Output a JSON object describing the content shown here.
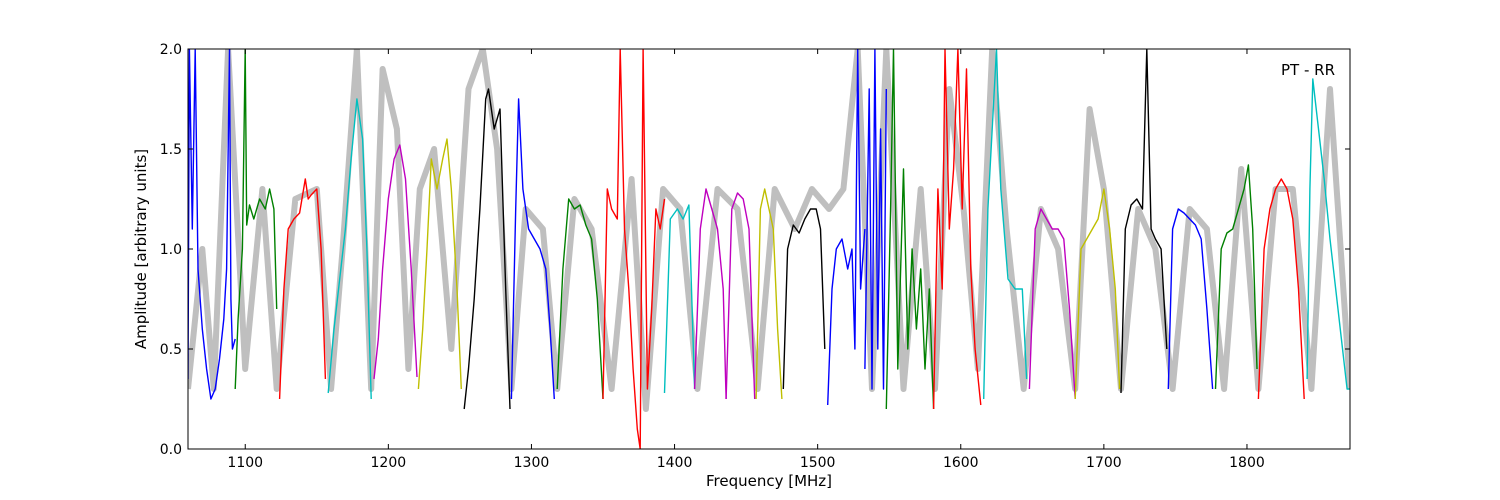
{
  "chart_data": {
    "type": "line",
    "title": "",
    "annotation": "PT - RR",
    "xlabel": "Frequency [MHz]",
    "ylabel": "Amplitude [arbitrary units]",
    "xlim": [
      1060,
      1872
    ],
    "ylim": [
      0,
      2.0
    ],
    "xticks": [
      1100,
      1200,
      1300,
      1400,
      1500,
      1600,
      1700,
      1800
    ],
    "yticks": [
      0.0,
      0.5,
      1.0,
      1.5,
      2.0
    ],
    "xtick_labels": [
      "1100",
      "1200",
      "1300",
      "1400",
      "1500",
      "1600",
      "1700",
      "1800"
    ],
    "ytick_labels": [
      "0.0",
      "0.5",
      "1.0",
      "1.5",
      "2.0"
    ],
    "grid": false,
    "background_series": {
      "color": "#bfbfbf",
      "x": [
        1060,
        1070,
        1078,
        1088,
        1100,
        1112,
        1122,
        1135,
        1150,
        1160,
        1168,
        1178,
        1188,
        1196,
        1206,
        1214,
        1222,
        1232,
        1244,
        1256,
        1266,
        1276,
        1286,
        1296,
        1308,
        1318,
        1330,
        1342,
        1356,
        1370,
        1380,
        1392,
        1404,
        1416,
        1430,
        1444,
        1458,
        1470,
        1484,
        1496,
        1508,
        1518,
        1528,
        1538,
        1548,
        1560,
        1572,
        1582,
        1592,
        1602,
        1612,
        1622,
        1632,
        1644,
        1656,
        1668,
        1680,
        1690,
        1700,
        1712,
        1724,
        1736,
        1748,
        1760,
        1772,
        1784,
        1796,
        1808,
        1820,
        1832,
        1845,
        1858,
        1872
      ],
      "values": [
        0.3,
        1.0,
        0.3,
        2.0,
        0.4,
        1.3,
        0.3,
        1.25,
        1.3,
        0.3,
        1.0,
        2.0,
        0.3,
        1.9,
        1.6,
        0.4,
        1.3,
        1.5,
        0.5,
        1.8,
        2.0,
        1.5,
        0.3,
        1.2,
        1.1,
        0.3,
        1.25,
        1.1,
        0.3,
        1.35,
        0.2,
        1.3,
        1.2,
        0.3,
        1.3,
        1.2,
        0.3,
        1.3,
        1.1,
        1.3,
        1.2,
        1.3,
        2.0,
        0.3,
        2.0,
        0.3,
        1.3,
        0.3,
        1.8,
        1.2,
        0.4,
        2.0,
        1.1,
        0.3,
        1.2,
        1.0,
        0.3,
        1.7,
        1.3,
        0.3,
        1.2,
        1.0,
        0.3,
        1.2,
        1.1,
        0.3,
        1.4,
        0.3,
        1.3,
        1.3,
        0.3,
        1.8,
        0.3
      ]
    },
    "series": [
      {
        "color": "#0000ff",
        "x": [
          1060,
          1061,
          1063,
          1065,
          1067,
          1070,
          1073,
          1076,
          1079,
          1082,
          1085,
          1087,
          1089,
          1090,
          1091,
          1093
        ],
        "values": [
          0.35,
          2.0,
          1.1,
          2.0,
          0.9,
          0.6,
          0.4,
          0.25,
          0.3,
          0.45,
          0.65,
          0.9,
          2.0,
          0.75,
          0.5,
          0.55
        ]
      },
      {
        "color": "#008000",
        "x": [
          1093,
          1095,
          1098,
          1100,
          1101,
          1103,
          1106,
          1110,
          1114,
          1117,
          1120,
          1122
        ],
        "values": [
          0.3,
          0.65,
          1.0,
          2.0,
          1.12,
          1.22,
          1.15,
          1.25,
          1.2,
          1.3,
          1.2,
          0.7
        ]
      },
      {
        "color": "#ff0000",
        "x": [
          1124,
          1127,
          1130,
          1134,
          1138,
          1142,
          1144,
          1146,
          1150,
          1153,
          1156
        ],
        "values": [
          0.25,
          0.8,
          1.1,
          1.15,
          1.18,
          1.35,
          1.25,
          1.27,
          1.3,
          1.0,
          0.35
        ]
      },
      {
        "color": "#00bfbf",
        "x": [
          1158,
          1162,
          1166,
          1170,
          1174,
          1178,
          1182,
          1185,
          1188
        ],
        "values": [
          0.28,
          0.6,
          0.85,
          1.1,
          1.45,
          1.75,
          1.55,
          1.0,
          0.25
        ]
      },
      {
        "color": "#bf00bf",
        "x": [
          1190,
          1193,
          1196,
          1200,
          1204,
          1208,
          1212,
          1216,
          1220
        ],
        "values": [
          0.35,
          0.55,
          0.9,
          1.25,
          1.45,
          1.52,
          1.35,
          0.9,
          0.36
        ]
      },
      {
        "color": "#bfbf00",
        "x": [
          1221,
          1224,
          1227,
          1230,
          1234,
          1238,
          1241,
          1244,
          1248,
          1251
        ],
        "values": [
          0.3,
          0.6,
          1.0,
          1.45,
          1.3,
          1.45,
          1.55,
          1.3,
          0.8,
          0.3
        ]
      },
      {
        "color": "#000000",
        "x": [
          1253,
          1256,
          1260,
          1264,
          1268,
          1270,
          1274,
          1278,
          1282,
          1285
        ],
        "values": [
          0.2,
          0.4,
          0.75,
          1.2,
          1.75,
          1.8,
          1.6,
          1.7,
          0.8,
          0.2
        ]
      },
      {
        "color": "#0000ff",
        "x": [
          1286,
          1289,
          1291,
          1294,
          1298,
          1302,
          1306,
          1310,
          1313,
          1316
        ],
        "values": [
          0.25,
          1.2,
          1.75,
          1.3,
          1.1,
          1.05,
          1.0,
          0.9,
          0.6,
          0.25
        ]
      },
      {
        "color": "#008000",
        "x": [
          1318,
          1322,
          1326,
          1330,
          1334,
          1338,
          1342,
          1346,
          1350
        ],
        "values": [
          0.3,
          0.9,
          1.25,
          1.2,
          1.22,
          1.12,
          1.05,
          0.75,
          0.25
        ]
      },
      {
        "color": "#ff0000",
        "x": [
          1350,
          1353,
          1356,
          1360,
          1362,
          1365,
          1368,
          1371,
          1374,
          1376,
          1378,
          1381,
          1384,
          1387,
          1390,
          1393
        ],
        "values": [
          0.25,
          1.3,
          1.2,
          1.15,
          2.0,
          1.1,
          0.8,
          0.4,
          0.1,
          0.0,
          2.0,
          0.3,
          0.7,
          1.2,
          1.1,
          1.25
        ]
      },
      {
        "color": "#00bfbf",
        "x": [
          1393,
          1397,
          1402,
          1406,
          1410,
          1414
        ],
        "values": [
          0.28,
          1.15,
          1.2,
          1.15,
          1.22,
          0.3
        ]
      },
      {
        "color": "#bf00bf",
        "x": [
          1414,
          1418,
          1422,
          1426,
          1430,
          1434,
          1436
        ],
        "values": [
          0.3,
          1.1,
          1.3,
          1.2,
          1.1,
          0.8,
          0.25
        ]
      },
      {
        "color": "#bf00bf",
        "x": [
          1436,
          1440,
          1444,
          1448,
          1452,
          1456
        ],
        "values": [
          0.25,
          1.2,
          1.28,
          1.25,
          1.1,
          0.25
        ]
      },
      {
        "color": "#bfbf00",
        "x": [
          1457,
          1460,
          1463,
          1466,
          1469,
          1472,
          1475
        ],
        "values": [
          0.25,
          1.2,
          1.3,
          1.2,
          1.1,
          0.6,
          0.25
        ]
      },
      {
        "color": "#000000",
        "x": [
          1476,
          1479,
          1483,
          1487,
          1491,
          1495,
          1499,
          1502,
          1505
        ],
        "values": [
          0.3,
          1.0,
          1.12,
          1.08,
          1.15,
          1.2,
          1.2,
          1.1,
          0.5
        ]
      },
      {
        "color": "#0000ff",
        "x": [
          1507,
          1510,
          1513,
          1517,
          1521,
          1524,
          1526,
          1528,
          1530,
          1533
        ],
        "values": [
          0.22,
          0.8,
          1.0,
          1.05,
          0.9,
          1.0,
          0.5,
          2.0,
          0.8,
          1.1
        ]
      },
      {
        "color": "#0000ff",
        "x": [
          1533,
          1536,
          1538,
          1540,
          1542,
          1544,
          1546,
          1548
        ],
        "values": [
          0.4,
          1.8,
          0.3,
          2.0,
          0.5,
          1.6,
          0.3,
          1.8
        ]
      },
      {
        "color": "#008000",
        "x": [
          1548,
          1551,
          1553,
          1556,
          1560,
          1563,
          1566,
          1569,
          1572,
          1575,
          1578,
          1581
        ],
        "values": [
          0.2,
          1.2,
          2.0,
          0.4,
          1.4,
          0.5,
          1.0,
          0.6,
          0.9,
          0.4,
          0.8,
          0.2
        ]
      },
      {
        "color": "#ff0000",
        "x": [
          1581,
          1584,
          1587,
          1589,
          1592,
          1595,
          1598,
          1601,
          1604,
          1607,
          1610,
          1614
        ],
        "values": [
          0.2,
          1.3,
          0.8,
          2.0,
          1.1,
          1.4,
          2.0,
          1.2,
          1.9,
          0.9,
          0.5,
          0.22
        ]
      },
      {
        "color": "#00bfbf",
        "x": [
          1616,
          1619,
          1622,
          1625,
          1628,
          1633,
          1638,
          1643,
          1646
        ],
        "values": [
          0.25,
          1.2,
          1.6,
          2.0,
          1.3,
          0.85,
          0.8,
          0.8,
          0.35
        ]
      },
      {
        "color": "#bf00bf",
        "x": [
          1648,
          1652,
          1656,
          1660,
          1664,
          1668,
          1672,
          1676,
          1680
        ],
        "values": [
          0.3,
          1.1,
          1.2,
          1.15,
          1.1,
          1.1,
          1.05,
          0.7,
          0.25
        ]
      },
      {
        "color": "#bfbf00",
        "x": [
          1680,
          1684,
          1688,
          1692,
          1696,
          1700,
          1704,
          1708,
          1711
        ],
        "values": [
          0.25,
          1.0,
          1.05,
          1.1,
          1.15,
          1.3,
          1.1,
          0.8,
          0.3
        ]
      },
      {
        "color": "#000000",
        "x": [
          1712,
          1715,
          1719,
          1723,
          1727,
          1730,
          1733,
          1736,
          1740,
          1744
        ],
        "values": [
          0.28,
          1.1,
          1.22,
          1.25,
          1.2,
          2.0,
          1.1,
          1.05,
          1.0,
          0.5
        ]
      },
      {
        "color": "#0000ff",
        "x": [
          1745,
          1748,
          1752,
          1756,
          1760,
          1764,
          1768,
          1772,
          1776
        ],
        "values": [
          0.3,
          1.1,
          1.2,
          1.18,
          1.15,
          1.12,
          1.05,
          0.7,
          0.3
        ]
      },
      {
        "color": "#008000",
        "x": [
          1778,
          1782,
          1786,
          1790,
          1794,
          1798,
          1801,
          1804,
          1807
        ],
        "values": [
          0.3,
          1.0,
          1.08,
          1.1,
          1.2,
          1.3,
          1.42,
          1.1,
          0.4
        ]
      },
      {
        "color": "#ff0000",
        "x": [
          1808,
          1812,
          1816,
          1820,
          1824,
          1828,
          1832,
          1836,
          1840
        ],
        "values": [
          0.25,
          1.0,
          1.2,
          1.3,
          1.35,
          1.3,
          1.15,
          0.8,
          0.25
        ]
      },
      {
        "color": "#00bfbf",
        "x": [
          1842,
          1844,
          1846,
          1850,
          1854,
          1858,
          1862,
          1866,
          1870,
          1872
        ],
        "values": [
          0.35,
          1.3,
          1.85,
          1.6,
          1.35,
          1.05,
          0.8,
          0.55,
          0.3,
          0.3
        ]
      }
    ]
  }
}
